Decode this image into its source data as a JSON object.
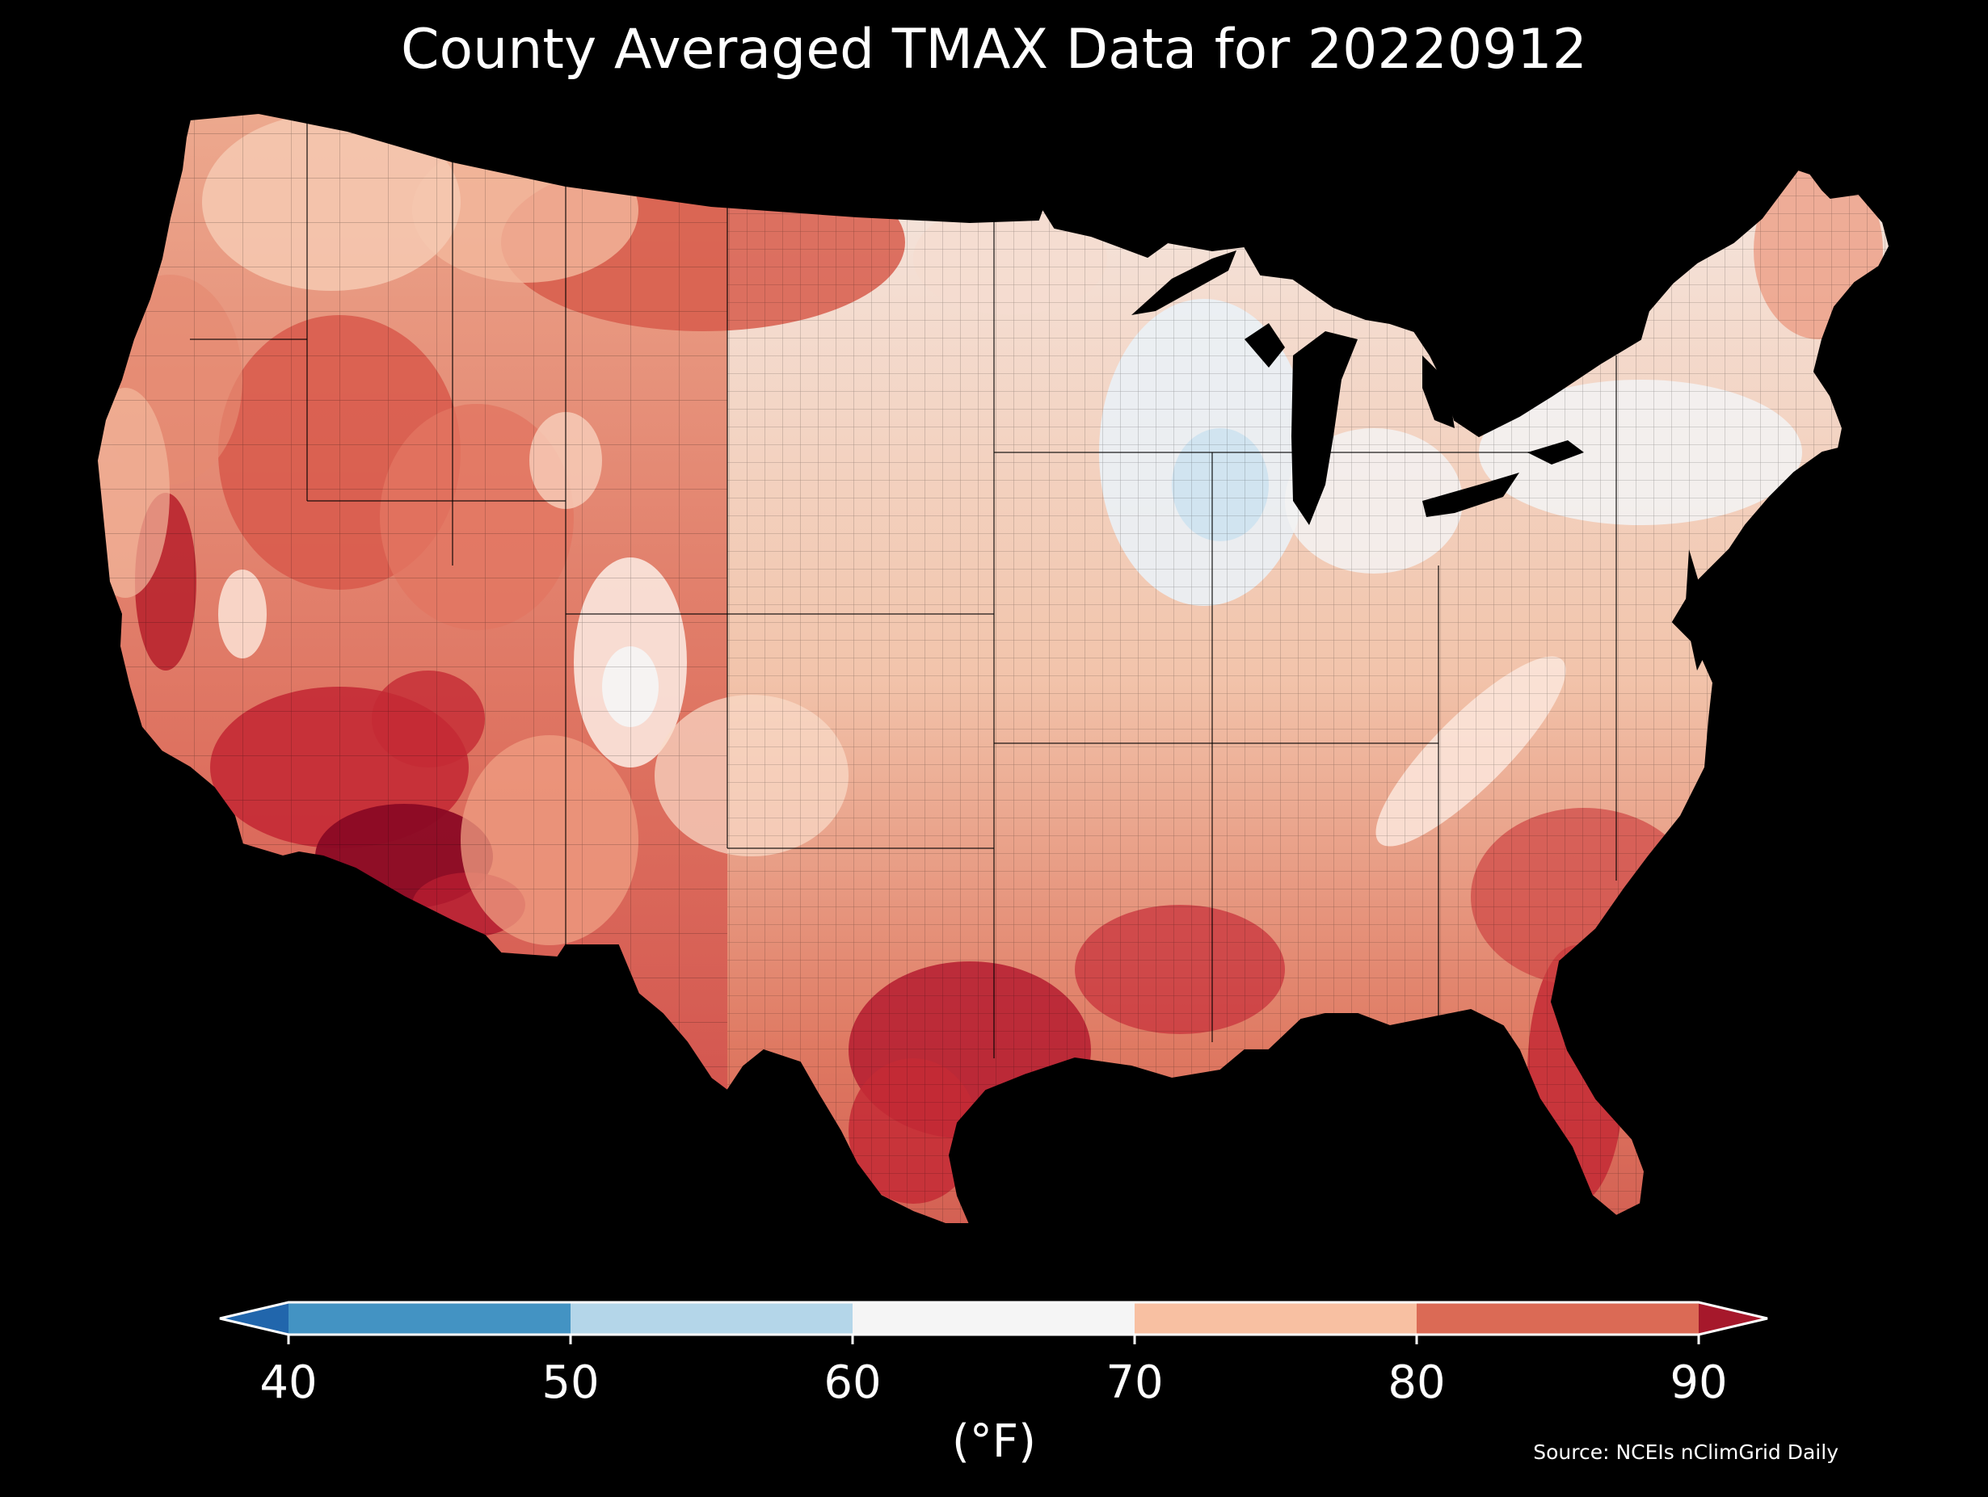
{
  "title": "County Averaged TMAX Data for 20220912",
  "colorbar": {
    "label": "(°F)",
    "ticks": [
      "40",
      "50",
      "60",
      "70",
      "80",
      "90"
    ],
    "bins": [
      {
        "min": 40,
        "max": 50,
        "color": "#4393c3"
      },
      {
        "min": 50,
        "max": 60,
        "color": "#b4d6e9"
      },
      {
        "min": 60,
        "max": 70,
        "color": "#f5f5f5"
      },
      {
        "min": 70,
        "max": 80,
        "color": "#f8c0a2"
      },
      {
        "min": 80,
        "max": 90,
        "color": "#db6a55"
      }
    ],
    "under_color": "#2166ac",
    "over_color": "#a6182b"
  },
  "source": "Source: NCEIs nClimGrid Daily",
  "map_data": {
    "region": "Contiguous United States counties",
    "variable": "TMAX",
    "date": "20220912",
    "units": "°F",
    "regional_values_approx": [
      {
        "region": "Pacific Northwest coast",
        "tmax_f": 72
      },
      {
        "region": "Northern Plains",
        "tmax_f": 80
      },
      {
        "region": "Great Basin",
        "tmax_f": 82
      },
      {
        "region": "Central Valley California",
        "tmax_f": 88
      },
      {
        "region": "Southern Arizona",
        "tmax_f": 92
      },
      {
        "region": "Colorado Front Range",
        "tmax_f": 66
      },
      {
        "region": "Central Plains",
        "tmax_f": 74
      },
      {
        "region": "Upper Midwest / Wisconsin",
        "tmax_f": 60
      },
      {
        "region": "Great Lakes / Ohio Valley",
        "tmax_f": 66
      },
      {
        "region": "Northeast",
        "tmax_f": 68
      },
      {
        "region": "Northern Maine",
        "tmax_f": 76
      },
      {
        "region": "Appalachians",
        "tmax_f": 68
      },
      {
        "region": "Southeast",
        "tmax_f": 84
      },
      {
        "region": "Gulf Coast Texas / Louisiana",
        "tmax_f": 88
      },
      {
        "region": "Florida",
        "tmax_f": 87
      },
      {
        "region": "West Texas / New Mexico",
        "tmax_f": 78
      }
    ]
  }
}
